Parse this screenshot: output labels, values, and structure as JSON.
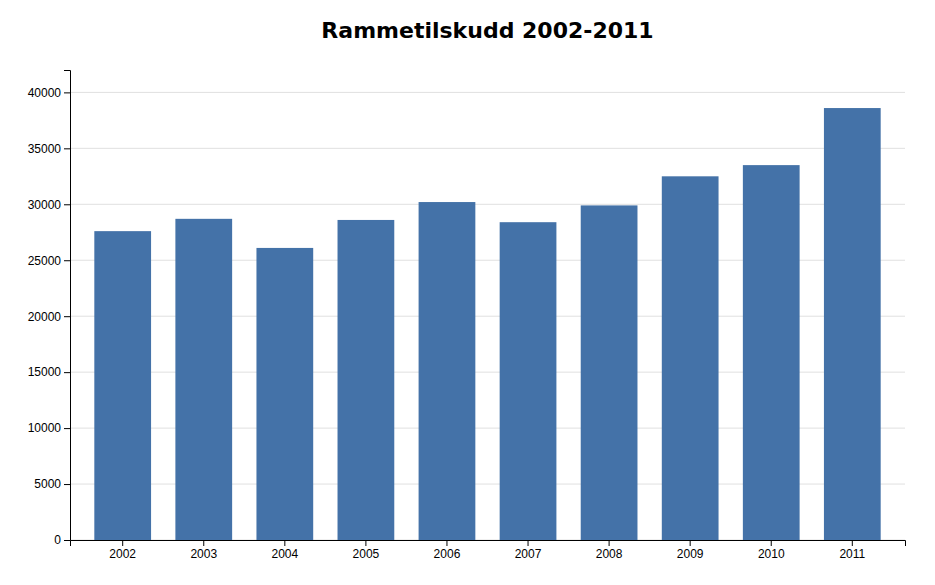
{
  "chart_data": {
    "type": "bar",
    "title": "Rammetilskudd 2002-2011",
    "categories": [
      "2002",
      "2003",
      "2004",
      "2005",
      "2006",
      "2007",
      "2008",
      "2009",
      "2010",
      "2011"
    ],
    "values": [
      27600,
      28700,
      26100,
      28600,
      30200,
      28400,
      29900,
      32500,
      33500,
      38600
    ],
    "color": "#4472A8",
    "ylim": [
      0,
      42000
    ],
    "yticks": [
      0,
      5000,
      10000,
      15000,
      20000,
      25000,
      30000,
      35000,
      40000
    ],
    "grid": true
  }
}
